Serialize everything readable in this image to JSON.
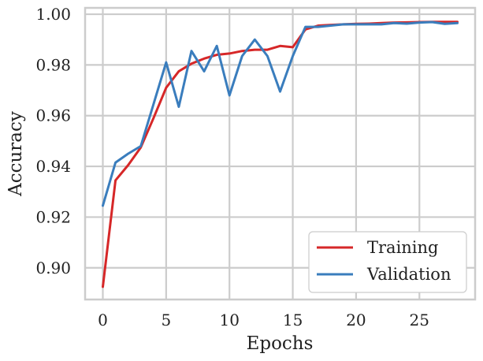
{
  "chart_data": {
    "type": "line",
    "title": "",
    "xlabel": "Epochs",
    "ylabel": "Accuracy",
    "xlim": [
      -1.4,
      29.4
    ],
    "ylim": [
      0.8875,
      1.0025
    ],
    "x_ticks": [
      0,
      5,
      10,
      15,
      20,
      25
    ],
    "x_tick_labels": [
      "0",
      "5",
      "10",
      "15",
      "20",
      "25"
    ],
    "y_ticks": [
      0.9,
      0.92,
      0.94,
      0.96,
      0.98,
      1.0
    ],
    "y_tick_labels": [
      "0.90",
      "0.92",
      "0.94",
      "0.96",
      "0.98",
      "1.00"
    ],
    "grid": true,
    "legend_position": "bottom-right",
    "x": [
      0,
      1,
      2,
      3,
      4,
      5,
      6,
      7,
      8,
      9,
      10,
      11,
      12,
      13,
      14,
      15,
      16,
      17,
      18,
      19,
      20,
      21,
      22,
      23,
      24,
      25,
      26,
      27,
      28
    ],
    "series": [
      {
        "name": "Training",
        "color": "#d62728",
        "values": [
          0.8925,
          0.9345,
          0.9405,
          0.9475,
          0.959,
          0.971,
          0.9775,
          0.9805,
          0.9825,
          0.984,
          0.9845,
          0.9855,
          0.986,
          0.986,
          0.9875,
          0.987,
          0.994,
          0.9955,
          0.9958,
          0.996,
          0.9962,
          0.9963,
          0.9965,
          0.9967,
          0.9968,
          0.9969,
          0.997,
          0.997,
          0.997
        ]
      },
      {
        "name": "Validation",
        "color": "#3a7dbd",
        "values": [
          0.9245,
          0.9415,
          0.945,
          0.948,
          0.9645,
          0.981,
          0.9635,
          0.9855,
          0.9775,
          0.9875,
          0.968,
          0.9835,
          0.99,
          0.9835,
          0.9695,
          0.9835,
          0.995,
          0.995,
          0.9955,
          0.996,
          0.996,
          0.996,
          0.996,
          0.9965,
          0.9963,
          0.9967,
          0.9969,
          0.9962,
          0.9965
        ]
      }
    ]
  }
}
